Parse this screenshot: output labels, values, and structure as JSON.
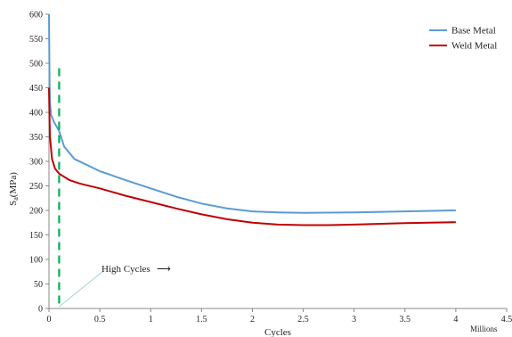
{
  "chart_data": {
    "type": "line",
    "xlabel": "Cycles",
    "ylabel_main": "S",
    "ylabel_sub": "a",
    "ylabel_unit": "(MPa)",
    "x_unit_label": "Millions",
    "xlim": [
      0,
      4.5
    ],
    "ylim": [
      0,
      600
    ],
    "x_ticks": [
      "0",
      "0.5",
      "1",
      "1.5",
      "2",
      "2.5",
      "3",
      "3.5",
      "4",
      "4.5"
    ],
    "y_ticks": [
      "0",
      "50",
      "100",
      "150",
      "200",
      "250",
      "300",
      "350",
      "400",
      "450",
      "500",
      "550",
      "600"
    ],
    "grid": false,
    "legend_position": "top-right",
    "series": [
      {
        "name": "Base Metal",
        "color": "#5b9bd5",
        "points": [
          [
            0,
            600
          ],
          [
            0.005,
            470
          ],
          [
            0.01,
            420
          ],
          [
            0.02,
            395
          ],
          [
            0.05,
            380
          ],
          [
            0.1,
            362
          ],
          [
            0.15,
            330
          ],
          [
            0.25,
            305
          ],
          [
            0.5,
            280
          ],
          [
            0.75,
            262
          ],
          [
            1.0,
            245
          ],
          [
            1.25,
            228
          ],
          [
            1.5,
            214
          ],
          [
            1.75,
            204
          ],
          [
            2.0,
            198
          ],
          [
            2.25,
            196
          ],
          [
            2.5,
            195
          ],
          [
            3.0,
            196
          ],
          [
            3.5,
            198
          ],
          [
            4.0,
            200
          ]
        ]
      },
      {
        "name": "Weld Metal",
        "color": "#c00000",
        "points": [
          [
            0,
            450
          ],
          [
            0.005,
            390
          ],
          [
            0.01,
            350
          ],
          [
            0.03,
            305
          ],
          [
            0.06,
            285
          ],
          [
            0.1,
            275
          ],
          [
            0.2,
            262
          ],
          [
            0.3,
            255
          ],
          [
            0.5,
            245
          ],
          [
            0.75,
            230
          ],
          [
            1.0,
            217
          ],
          [
            1.25,
            204
          ],
          [
            1.5,
            192
          ],
          [
            1.75,
            182
          ],
          [
            2.0,
            175
          ],
          [
            2.25,
            171
          ],
          [
            2.5,
            170
          ],
          [
            2.75,
            170
          ],
          [
            3.0,
            171
          ],
          [
            3.5,
            174
          ],
          [
            4.0,
            176
          ]
        ]
      }
    ],
    "marker_line": {
      "x": 0.1,
      "y_top": 490,
      "color": "#00b050"
    },
    "annotation": {
      "text": "High Cycles",
      "arrow_glyph": "⟶"
    }
  }
}
